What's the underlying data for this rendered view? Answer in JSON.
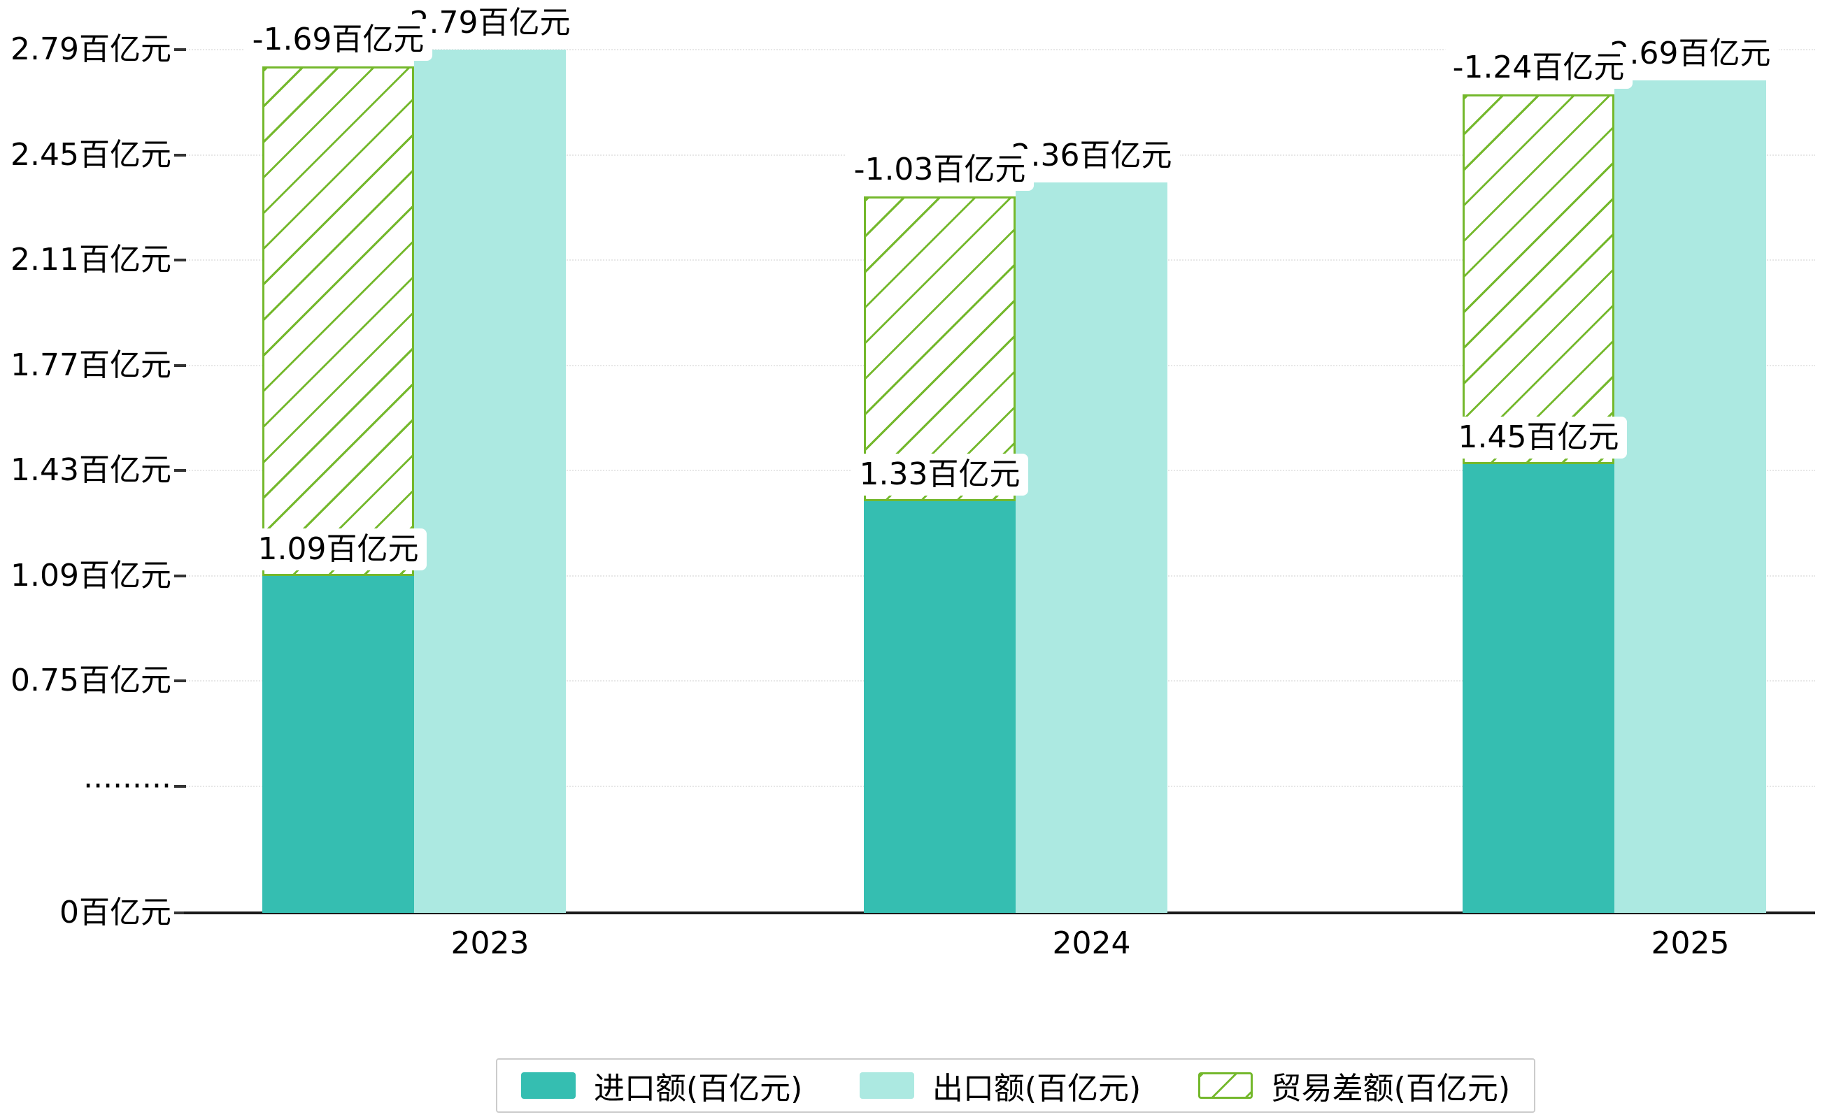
{
  "chart_data": {
    "type": "bar",
    "title": "",
    "categories": [
      "2023",
      "2024",
      "2025"
    ],
    "series": [
      {
        "name": "进口额(百亿元)",
        "color": "#35beb1",
        "values": [
          1.09,
          1.33,
          1.45
        ],
        "labels": [
          "1.09百亿元",
          "1.33百亿元",
          "1.45百亿元"
        ]
      },
      {
        "name": "出口额(百亿元)",
        "color": "#ace9e1",
        "values": [
          2.79,
          2.36,
          2.69
        ],
        "labels": [
          "2.79百亿元",
          "2.36百亿元",
          "2.69百亿元"
        ]
      },
      {
        "name": "贸易差额(百亿元)",
        "color": "#74b82c",
        "pattern": "diagonal-hatch",
        "values": [
          -1.69,
          -1.03,
          -1.24
        ],
        "labels": [
          "-1.69百亿元",
          "-1.03百亿元",
          "-1.24百亿元"
        ]
      }
    ],
    "unit": "百亿元",
    "ylim": [
      0,
      2.79
    ],
    "yticks": [
      {
        "value": 0,
        "label": "0百亿元"
      },
      {
        "value": 0.41,
        "label": "·········"
      },
      {
        "value": 0.75,
        "label": "0.75百亿元"
      },
      {
        "value": 1.09,
        "label": "1.09百亿元"
      },
      {
        "value": 1.43,
        "label": "1.43百亿元"
      },
      {
        "value": 1.77,
        "label": "1.77百亿元"
      },
      {
        "value": 2.11,
        "label": "2.11百亿元"
      },
      {
        "value": 2.45,
        "label": "2.45百亿元"
      },
      {
        "value": 2.79,
        "label": "2.79百亿元"
      }
    ],
    "grid": "dotted-horizontal",
    "legend_position": "bottom",
    "legend": [
      "进口额(百亿元)",
      "出口额(百亿元)",
      "贸易差额(百亿元)"
    ]
  },
  "colors": {
    "background": "#ffffff",
    "axis": "#1a1a1a",
    "text": "#000000",
    "gridline": "#e7e7e7"
  }
}
